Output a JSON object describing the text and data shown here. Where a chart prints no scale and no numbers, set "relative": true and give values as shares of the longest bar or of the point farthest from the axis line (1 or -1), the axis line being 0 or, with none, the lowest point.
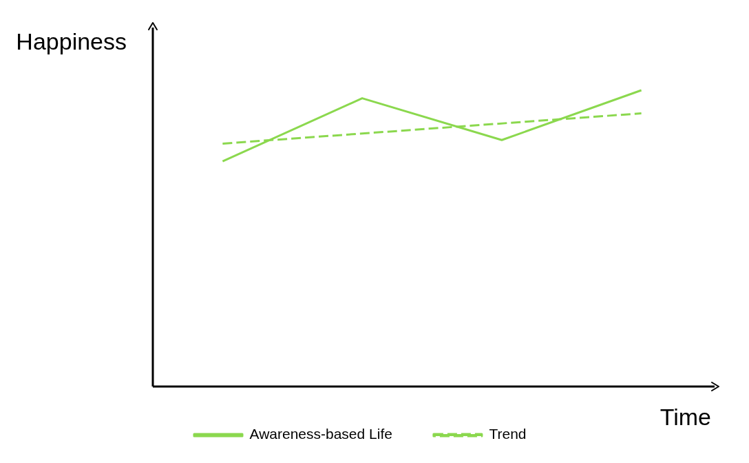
{
  "chart_data": {
    "type": "line",
    "relative": true,
    "xlabel": "Time",
    "ylabel": "Happiness",
    "categories": [
      null,
      null,
      null,
      null
    ],
    "series": [
      {
        "name": "Awareness-based Life",
        "color": "#8bd84e",
        "values": [
          0.76,
          0.973,
          0.832,
          1
        ]
      },
      {
        "name": "Trend",
        "color": "#8bd84e",
        "values": [
          0.82,
          null,
          null,
          0.922
        ],
        "line_style": "dashed"
      }
    ],
    "legend": "bottom",
    "grid": false,
    "marker": "none"
  }
}
